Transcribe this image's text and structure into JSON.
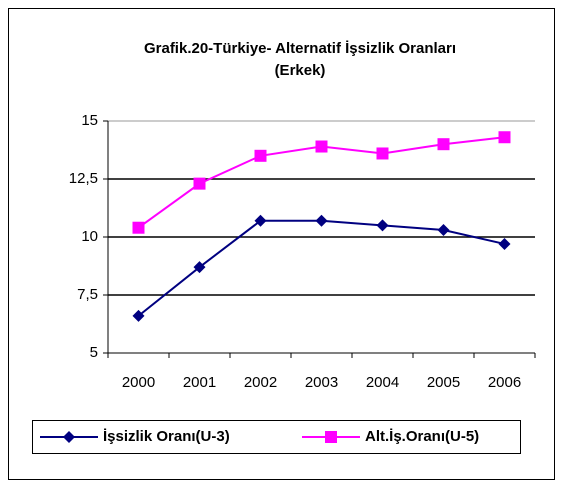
{
  "chart_data": {
    "type": "line",
    "title": "Grafik.20-Türkiye- Alternatif İşsizlik Oranları (Erkek)",
    "categories": [
      "2000",
      "2001",
      "2002",
      "2003",
      "2004",
      "2005",
      "2006"
    ],
    "series": [
      {
        "name": "İşsizlik Oranı(U-3)",
        "color": "#000080",
        "marker": "diamond",
        "values": [
          6.6,
          8.7,
          10.7,
          10.7,
          10.5,
          10.3,
          9.7
        ]
      },
      {
        "name": "Alt.İş.Oranı(U-5)",
        "color": "#ff00ff",
        "marker": "square",
        "values": [
          10.4,
          12.3,
          13.5,
          13.9,
          13.6,
          14.0,
          14.3
        ]
      }
    ],
    "ylim": [
      5,
      15
    ],
    "yticks": [
      5,
      {
        "value": 7.5,
        "label": "7,5"
      },
      10,
      {
        "value": 12.5,
        "label": "12,5"
      },
      15
    ],
    "grid": true,
    "legend": "bottom"
  }
}
